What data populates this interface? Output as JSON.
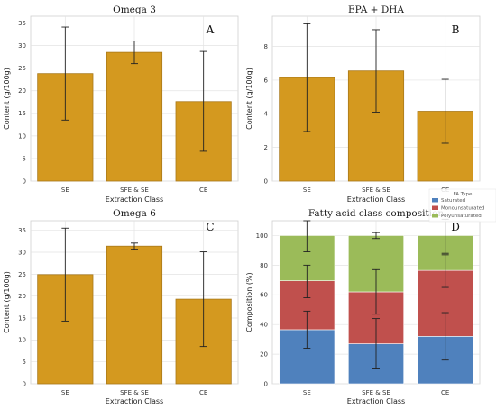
{
  "colors": {
    "bar": "#d4991f",
    "bar_edge": "#a9791a",
    "grid": "#e3e3e3",
    "frame": "#cfcfcf",
    "saturated": "#4f81bd",
    "monounsaturated": "#c0504d",
    "polyunsaturated": "#9bbb59",
    "errorbar": "#222222"
  },
  "chart_data": [
    {
      "type": "bar",
      "panel": "A",
      "title": "Omega 3",
      "xlabel": "Extraction Class",
      "ylabel": "Content (g/100g)",
      "categories": [
        "SE",
        "SFE & SE",
        "CE"
      ],
      "values": [
        23.8,
        28.5,
        17.6
      ],
      "error_low": [
        13.5,
        26.0,
        6.6
      ],
      "error_high": [
        34.1,
        31.0,
        28.7
      ],
      "ylim": [
        0,
        36.5
      ],
      "yticks": [
        0,
        5,
        10,
        15,
        20,
        25,
        30,
        35
      ],
      "grid": true
    },
    {
      "type": "bar",
      "panel": "B",
      "title": "EPA + DHA",
      "xlabel": "Extraction Class",
      "ylabel": "Content (g/100g)",
      "categories": [
        "SE",
        "SFE & SE",
        "CE"
      ],
      "values": [
        6.15,
        6.55,
        4.15
      ],
      "error_low": [
        2.95,
        4.1,
        2.25
      ],
      "error_high": [
        9.35,
        9.0,
        6.05
      ],
      "ylim": [
        0,
        9.8
      ],
      "yticks": [
        0,
        2,
        4,
        6,
        8
      ],
      "grid": true
    },
    {
      "type": "bar",
      "panel": "C",
      "title": "Omega 6",
      "xlabel": "Extraction Class",
      "ylabel": "Content (g/100g)",
      "categories": [
        "SE",
        "SFE & SE",
        "CE"
      ],
      "values": [
        24.9,
        31.4,
        19.3
      ],
      "error_low": [
        14.3,
        30.7,
        8.5
      ],
      "error_high": [
        35.5,
        32.1,
        30.1
      ],
      "ylim": [
        0,
        37.2
      ],
      "yticks": [
        0,
        5,
        10,
        15,
        20,
        25,
        30,
        35
      ],
      "grid": true
    },
    {
      "type": "bar",
      "stacked": true,
      "panel": "D",
      "title": "Fatty acid class composition",
      "xlabel": "Extraction Class",
      "ylabel": "Composition (%)",
      "categories": [
        "SE",
        "SFE & SE",
        "CE"
      ],
      "legend_title": "FA Type",
      "legend_position": "top-right",
      "series": [
        {
          "name": "Saturated",
          "values": [
            36.5,
            27.0,
            32.0
          ],
          "error_low": [
            24.0,
            10.0,
            16.0
          ],
          "error_high": [
            49.0,
            44.0,
            48.0
          ]
        },
        {
          "name": "Monounsaturated",
          "values": [
            33.0,
            35.0,
            44.5
          ],
          "error_low": [
            58.0,
            47.0,
            65.0
          ],
          "error_high": [
            80.0,
            77.0,
            87.0
          ]
        },
        {
          "name": "Polyunsaturated",
          "values": [
            30.5,
            38.0,
            23.5
          ],
          "error_low": [
            89.0,
            98.0,
            88.0
          ],
          "error_high": [
            110.0,
            102.0,
            111.0
          ]
        }
      ],
      "ylim": [
        0,
        110
      ],
      "yticks": [
        0,
        20,
        40,
        60,
        80,
        100
      ],
      "grid": true
    }
  ]
}
